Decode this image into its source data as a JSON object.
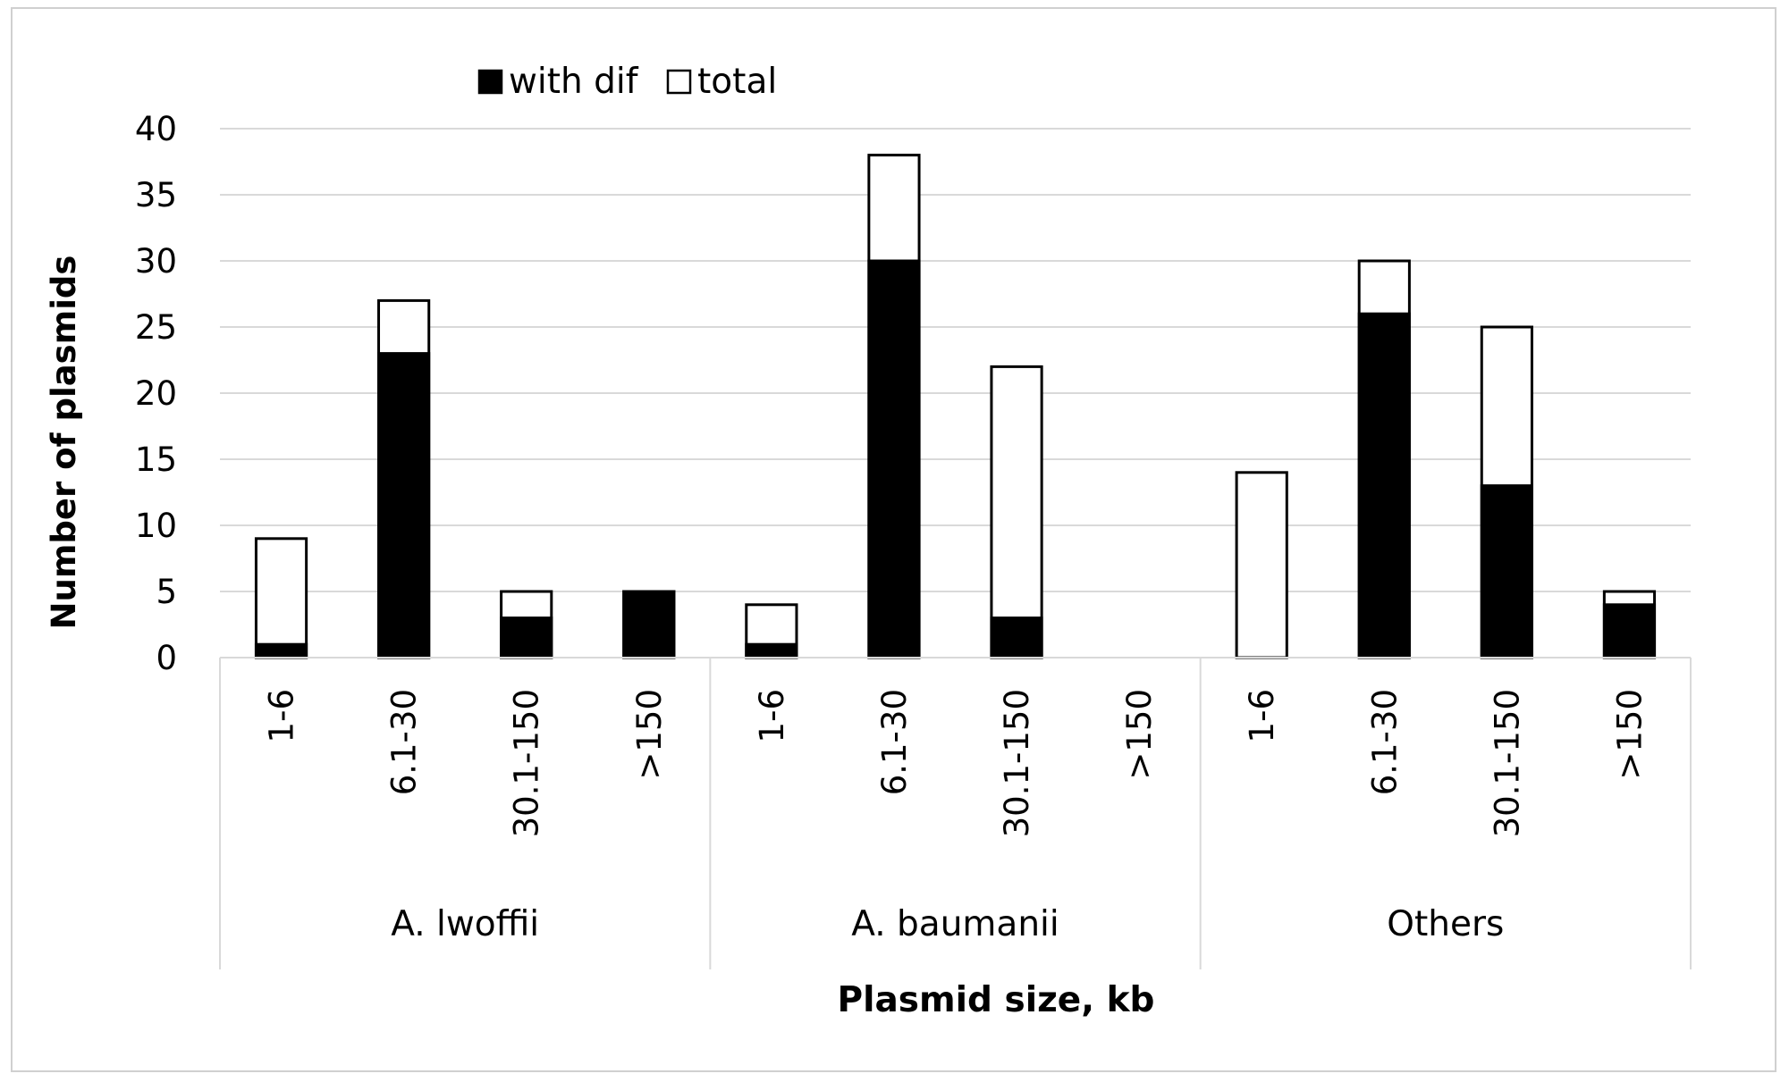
{
  "chart_data": {
    "type": "bar",
    "stacked": false,
    "groups": [
      {
        "label": "A. lwoffii",
        "categories": [
          "1-6",
          "6.1-30",
          "30.1-150",
          ">150"
        ]
      },
      {
        "label": "A. baumanii",
        "categories": [
          "1-6",
          "6.1-30",
          "30.1-150",
          ">150"
        ]
      },
      {
        "label": "Others",
        "categories": [
          "1-6",
          "6.1-30",
          "30.1-150",
          ">150"
        ]
      }
    ],
    "series": [
      {
        "name": "with dif",
        "color": "#000000",
        "values": [
          1,
          23,
          3,
          5,
          1,
          30,
          3,
          0,
          0,
          26,
          13,
          4
        ]
      },
      {
        "name": "total",
        "color": "#ffffff",
        "values": [
          9,
          27,
          5,
          5,
          4,
          38,
          22,
          0,
          14,
          30,
          25,
          5
        ]
      }
    ],
    "xlabel": "Plasmid size, kb",
    "ylabel": "Number of plasmids",
    "ylim": [
      0,
      40
    ],
    "yticks": [
      "0",
      "5",
      "10",
      "15",
      "20",
      "25",
      "30",
      "35",
      "40"
    ],
    "grid": true,
    "legend_position": "top-left"
  }
}
